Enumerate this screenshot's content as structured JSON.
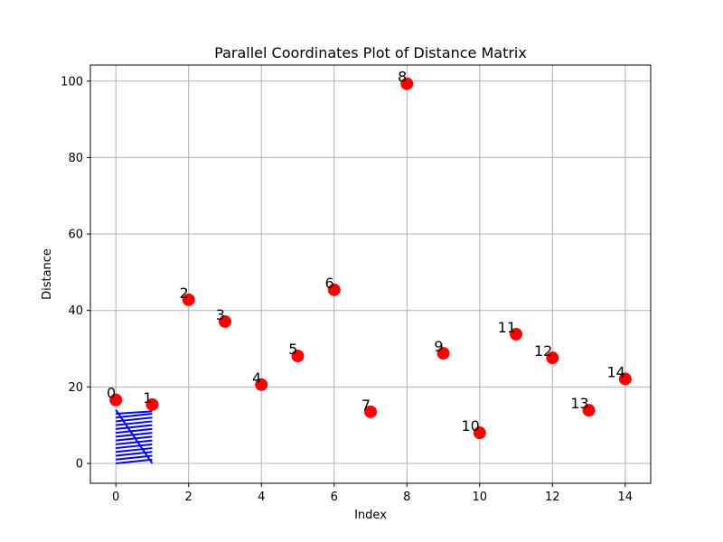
{
  "chart_data": {
    "type": "scatter",
    "title": "Parallel Coordinates Plot of Distance Matrix",
    "xlabel": "Index",
    "ylabel": "Distance",
    "xlim": [
      -0.7,
      14.7
    ],
    "ylim": [
      -5.2,
      104.2
    ],
    "xticks": [
      0,
      2,
      4,
      6,
      8,
      10,
      12,
      14
    ],
    "yticks": [
      0,
      20,
      40,
      60,
      80,
      100
    ],
    "grid": true,
    "colors": {
      "points": "#ff0000",
      "lines": "#0000ff",
      "grid": "#b0b0b0"
    },
    "points": [
      {
        "label": "0",
        "x": 0,
        "y": 16.6
      },
      {
        "label": "1",
        "x": 1,
        "y": 15.4
      },
      {
        "label": "2",
        "x": 2,
        "y": 42.8
      },
      {
        "label": "3",
        "x": 3,
        "y": 37.1
      },
      {
        "label": "4",
        "x": 4,
        "y": 20.6
      },
      {
        "label": "5",
        "x": 5,
        "y": 28.1
      },
      {
        "label": "6",
        "x": 6,
        "y": 45.4
      },
      {
        "label": "7",
        "x": 7,
        "y": 13.5
      },
      {
        "label": "8",
        "x": 8,
        "y": 99.3
      },
      {
        "label": "9",
        "x": 9,
        "y": 28.8
      },
      {
        "label": "10",
        "x": 10,
        "y": 8.0
      },
      {
        "label": "11",
        "x": 11,
        "y": 33.8
      },
      {
        "label": "12",
        "x": 12,
        "y": 27.6
      },
      {
        "label": "13",
        "x": 13,
        "y": 13.9
      },
      {
        "label": "14",
        "x": 14,
        "y": 22.1
      }
    ],
    "line_segments": [
      {
        "x": [
          0,
          1
        ],
        "y": [
          0.0,
          1.0
        ]
      },
      {
        "x": [
          0,
          1
        ],
        "y": [
          1.0,
          2.0
        ]
      },
      {
        "x": [
          0,
          1
        ],
        "y": [
          2.0,
          3.0
        ]
      },
      {
        "x": [
          0,
          1
        ],
        "y": [
          3.0,
          4.0
        ]
      },
      {
        "x": [
          0,
          1
        ],
        "y": [
          4.0,
          5.0
        ]
      },
      {
        "x": [
          0,
          1
        ],
        "y": [
          5.0,
          6.0
        ]
      },
      {
        "x": [
          0,
          1
        ],
        "y": [
          6.0,
          7.0
        ]
      },
      {
        "x": [
          0,
          1
        ],
        "y": [
          7.0,
          8.0
        ]
      },
      {
        "x": [
          0,
          1
        ],
        "y": [
          8.0,
          9.0
        ]
      },
      {
        "x": [
          0,
          1
        ],
        "y": [
          9.0,
          10.0
        ]
      },
      {
        "x": [
          0,
          1
        ],
        "y": [
          10.0,
          11.0
        ]
      },
      {
        "x": [
          0,
          1
        ],
        "y": [
          11.0,
          12.0
        ]
      },
      {
        "x": [
          0,
          1
        ],
        "y": [
          12.0,
          13.0
        ]
      },
      {
        "x": [
          0,
          1
        ],
        "y": [
          13.0,
          13.6
        ]
      },
      {
        "x": [
          0,
          1
        ],
        "y": [
          14.0,
          0.0
        ]
      }
    ]
  }
}
